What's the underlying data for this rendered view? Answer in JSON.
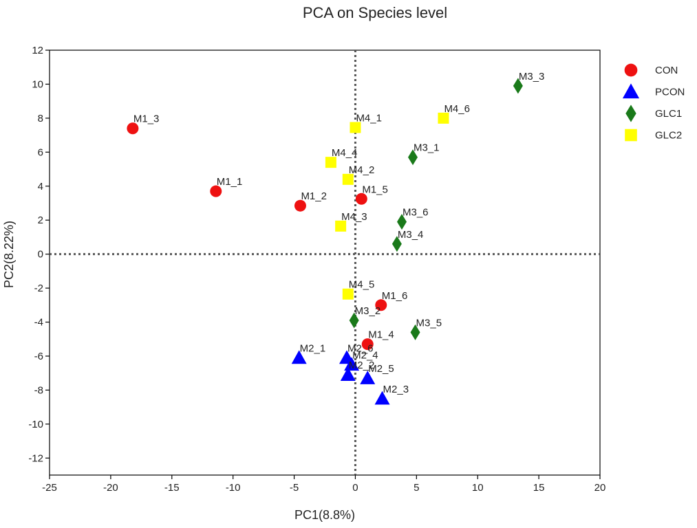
{
  "chart_data": {
    "type": "scatter",
    "title": "PCA on Species level",
    "xlabel": "PC1(8.8%)",
    "ylabel": "PC2(8.22%)",
    "xlim": [
      -25,
      20
    ],
    "ylim": [
      -13,
      12
    ],
    "xticks": [
      -25,
      -20,
      -15,
      -10,
      -5,
      0,
      5,
      10,
      15,
      20
    ],
    "yticks": [
      -12,
      -10,
      -8,
      -6,
      -4,
      -2,
      0,
      2,
      4,
      6,
      8,
      10,
      12
    ],
    "grid": false,
    "reference_lines": {
      "x": 0,
      "y": 0,
      "style": "dotted"
    },
    "legend_position": "top-right",
    "series": [
      {
        "name": "CON",
        "marker": "circle",
        "color": "#ee1111",
        "points": [
          {
            "label": "M1_3",
            "x": -18.2,
            "y": 7.4
          },
          {
            "label": "M1_1",
            "x": -11.4,
            "y": 3.7
          },
          {
            "label": "M1_2",
            "x": -4.5,
            "y": 2.85
          },
          {
            "label": "M1_5",
            "x": 0.5,
            "y": 3.25
          },
          {
            "label": "M1_6",
            "x": 2.1,
            "y": -3.0
          },
          {
            "label": "M1_4",
            "x": 1.0,
            "y": -5.3
          }
        ]
      },
      {
        "name": "PCON",
        "marker": "triangle",
        "color": "#0000ff",
        "points": [
          {
            "label": "M2_1",
            "x": -4.6,
            "y": -6.1
          },
          {
            "label": "M2_6",
            "x": -0.7,
            "y": -6.1
          },
          {
            "label": "M2_4",
            "x": -0.3,
            "y": -6.5
          },
          {
            "label": "M2_2",
            "x": -0.6,
            "y": -7.1
          },
          {
            "label": "M2_5",
            "x": 1.0,
            "y": -7.3
          },
          {
            "label": "M2_3",
            "x": 2.2,
            "y": -8.5
          }
        ]
      },
      {
        "name": "GLC1",
        "marker": "diamond",
        "color": "#1a7a1a",
        "points": [
          {
            "label": "M3_3",
            "x": 13.3,
            "y": 9.9
          },
          {
            "label": "M3_1",
            "x": 4.7,
            "y": 5.7
          },
          {
            "label": "M3_6",
            "x": 3.8,
            "y": 1.9
          },
          {
            "label": "M3_4",
            "x": 3.4,
            "y": 0.6
          },
          {
            "label": "M3_2",
            "x": -0.1,
            "y": -3.9
          },
          {
            "label": "M3_5",
            "x": 4.9,
            "y": -4.6
          }
        ]
      },
      {
        "name": "GLC2",
        "marker": "square",
        "color": "#ffff00",
        "points": [
          {
            "label": "M4_6",
            "x": 7.2,
            "y": 8.0
          },
          {
            "label": "M4_1",
            "x": 0.0,
            "y": 7.45
          },
          {
            "label": "M4_4",
            "x": -2.0,
            "y": 5.4
          },
          {
            "label": "M4_2",
            "x": -0.6,
            "y": 4.4
          },
          {
            "label": "M4_3",
            "x": -1.2,
            "y": 1.65
          },
          {
            "label": "M4_5",
            "x": -0.6,
            "y": -2.35
          }
        ]
      }
    ]
  }
}
